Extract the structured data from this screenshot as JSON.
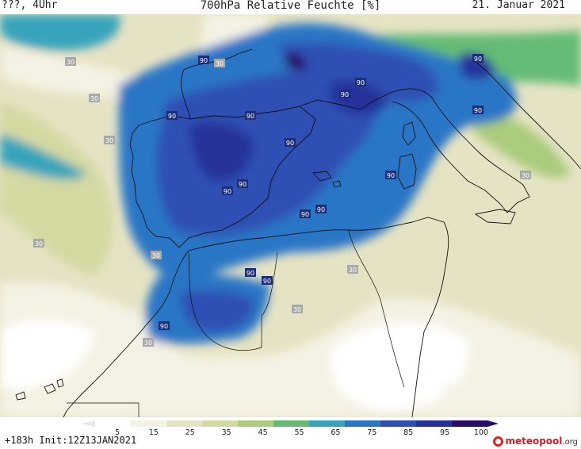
{
  "header": {
    "valid_time": "???, 4Uhr",
    "title": "700hPa Relative Feuchte [%]",
    "date": "21. Januar 2021"
  },
  "legend": {
    "ticks": [
      "5",
      "15",
      "25",
      "35",
      "45",
      "55",
      "65",
      "75",
      "85",
      "95",
      "100"
    ],
    "colors": [
      "#ffffff",
      "#f4f2e4",
      "#e6e3c4",
      "#d4d9a2",
      "#aacc7c",
      "#64bb74",
      "#37a4bc",
      "#2a76c6",
      "#2d4fb4",
      "#25309a",
      "#2a0c68"
    ]
  },
  "contour_labels": [
    "90",
    "30",
    "30",
    "90",
    "90",
    "30",
    "90",
    "90",
    "90",
    "90",
    "30",
    "90",
    "90",
    "90",
    "90",
    "90",
    "90",
    "30",
    "30",
    "90",
    "90",
    "30",
    "30",
    "90",
    "30"
  ],
  "footer": {
    "forecast_hour": "+183h",
    "init": "Init:12Z13JAN2021"
  },
  "brand": {
    "name": "meteopool",
    "tld": ".org"
  }
}
